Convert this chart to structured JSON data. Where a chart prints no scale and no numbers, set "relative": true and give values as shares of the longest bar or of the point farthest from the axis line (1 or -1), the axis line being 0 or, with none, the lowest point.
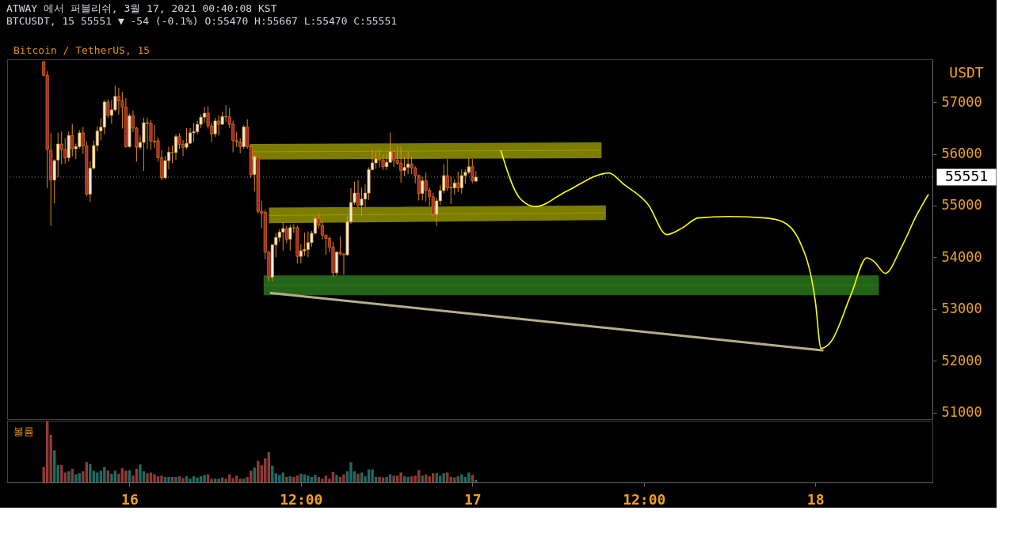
{
  "chart_data": [
    {
      "type": "candlestick",
      "title": "ATWAY 에서 퍼블리쉬, 3월 17, 2021 00:40:08 KST",
      "subtitle": "BTCUSDT, 15 55551 ▼ -54 (-0.1%) O:55470 H:55667 L:55470 C:55551",
      "ylabel": "USDT",
      "legend": "top left",
      "tick_labels": "y",
      "xlim": [
        "2021-03-15T15:43",
        "2021-03-18T07:55"
      ],
      "ylim": [
        50870,
        57829
      ],
      "yticks": [
        51000,
        52000,
        53000,
        54000,
        55000,
        56000,
        57000
      ],
      "ref_lines": [
        {
          "axis": "y",
          "value": 55551,
          "label": "55551",
          "color": "#ffffff",
          "line_style": "dotted"
        }
      ],
      "series": [
        {
          "type": "candlestick",
          "name": "Bitcoin / TetherUS, 15",
          "color": "#e08e0b",
          "x": [
            "2021-03-15T18:00",
            "2021-03-15T18:15",
            "2021-03-15T18:30",
            "2021-03-15T18:45",
            "2021-03-15T19:00",
            "2021-03-15T19:15",
            "2021-03-15T19:30",
            "2021-03-15T19:45",
            "2021-03-15T20:00",
            "2021-03-15T20:15",
            "2021-03-15T20:30",
            "2021-03-15T20:45",
            "2021-03-15T21:00",
            "2021-03-15T21:15",
            "2021-03-15T21:30",
            "2021-03-15T21:45",
            "2021-03-15T22:00",
            "2021-03-15T22:15",
            "2021-03-15T22:30",
            "2021-03-15T22:45",
            "2021-03-15T23:00",
            "2021-03-15T23:15",
            "2021-03-15T23:30",
            "2021-03-15T23:45",
            "2021-03-16T00:00",
            "2021-03-16T00:15",
            "2021-03-16T00:30",
            "2021-03-16T00:45",
            "2021-03-16T01:00",
            "2021-03-16T01:15",
            "2021-03-16T01:30",
            "2021-03-16T01:45",
            "2021-03-16T02:00",
            "2021-03-16T02:15",
            "2021-03-16T02:30",
            "2021-03-16T02:45",
            "2021-03-16T03:00",
            "2021-03-16T03:15",
            "2021-03-16T03:30",
            "2021-03-16T03:45",
            "2021-03-16T04:00",
            "2021-03-16T04:15",
            "2021-03-16T04:30",
            "2021-03-16T04:45",
            "2021-03-16T05:00",
            "2021-03-16T05:15",
            "2021-03-16T05:30",
            "2021-03-16T05:45",
            "2021-03-16T06:00",
            "2021-03-16T06:15",
            "2021-03-16T06:30",
            "2021-03-16T06:45",
            "2021-03-16T07:00",
            "2021-03-16T07:15",
            "2021-03-16T07:30",
            "2021-03-16T07:45",
            "2021-03-16T08:00",
            "2021-03-16T08:15",
            "2021-03-16T08:30",
            "2021-03-16T08:45",
            "2021-03-16T09:00",
            "2021-03-16T09:15",
            "2021-03-16T09:30",
            "2021-03-16T09:45",
            "2021-03-16T10:00",
            "2021-03-16T10:15",
            "2021-03-16T10:30",
            "2021-03-16T10:45",
            "2021-03-16T11:00",
            "2021-03-16T11:15",
            "2021-03-16T11:30",
            "2021-03-16T11:45",
            "2021-03-16T12:00",
            "2021-03-16T12:15",
            "2021-03-16T12:30",
            "2021-03-16T12:45",
            "2021-03-16T13:00",
            "2021-03-16T13:15",
            "2021-03-16T13:30",
            "2021-03-16T13:45",
            "2021-03-16T14:00",
            "2021-03-16T14:15",
            "2021-03-16T14:30",
            "2021-03-16T14:45",
            "2021-03-16T15:00",
            "2021-03-16T15:15",
            "2021-03-16T15:30",
            "2021-03-16T15:45",
            "2021-03-16T16:00",
            "2021-03-16T16:15",
            "2021-03-16T16:30",
            "2021-03-16T16:45",
            "2021-03-16T17:00",
            "2021-03-16T17:15",
            "2021-03-16T17:30",
            "2021-03-16T17:45",
            "2021-03-16T18:00",
            "2021-03-16T18:15",
            "2021-03-16T18:30",
            "2021-03-16T18:45",
            "2021-03-16T19:00",
            "2021-03-16T19:15",
            "2021-03-16T19:30",
            "2021-03-16T19:45",
            "2021-03-16T20:00",
            "2021-03-16T20:15",
            "2021-03-16T20:30",
            "2021-03-16T20:45",
            "2021-03-16T21:00",
            "2021-03-16T21:15",
            "2021-03-16T21:30",
            "2021-03-16T21:45",
            "2021-03-16T22:00",
            "2021-03-16T22:15",
            "2021-03-16T22:30",
            "2021-03-16T22:45",
            "2021-03-16T23:00",
            "2021-03-16T23:15",
            "2021-03-16T23:30",
            "2021-03-16T23:45",
            "2021-03-17T00:00",
            "2021-03-17T00:15"
          ],
          "colors": [
            "#b3242b",
            "#b3242b",
            "#b3242b",
            "#efeadc",
            "#efeadc",
            "#b3242b",
            "#b3242b",
            "#efeadc",
            "#b3242b",
            "#efeadc",
            "#efeadc",
            "#b3242b",
            "#b3242b",
            "#efeadc",
            "#efeadc",
            "#efeadc",
            "#efeadc",
            "#efeadc",
            "#b3242b",
            "#efeadc",
            "#efeadc",
            "#b3242b",
            "#b3242b",
            "#b3242b",
            "#efeadc",
            "#b3242b",
            "#b3242b",
            "#efeadc",
            "#efeadc",
            "#b3242b",
            "#b3242b",
            "#b3242b",
            "#b3242b",
            "#b3242b",
            "#efeadc",
            "#efeadc",
            "#b3242b",
            "#efeadc",
            "#b3242b",
            "#b3242b",
            "#efeadc",
            "#efeadc",
            "#efeadc",
            "#efeadc",
            "#efeadc",
            "#efeadc",
            "#b3242b",
            "#b3242b",
            "#efeadc",
            "#b3242b",
            "#efeadc",
            "#b3242b",
            "#b3242b",
            "#b3242b",
            "#b3242b",
            "#b3242b",
            "#efeadc",
            "#b3242b",
            "#b3242b",
            "#efeadc",
            "#b3242b",
            "#b3242b",
            "#b3242b",
            "#b3242b",
            "#efeadc",
            "#efeadc",
            "#efeadc",
            "#efeadc",
            "#b3242b",
            "#efeadc",
            "#b3242b",
            "#b3242b",
            "#efeadc",
            "#efeadc",
            "#efeadc",
            "#efeadc",
            "#efeadc",
            "#b3242b",
            "#b3242b",
            "#b3242b",
            "#b3242b",
            "#b3242b",
            "#efeadc",
            "#b3242b",
            "#b3242b",
            "#efeadc",
            "#efeadc",
            "#efeadc",
            "#b3242b",
            "#efeadc",
            "#efeadc",
            "#efeadc",
            "#efeadc",
            "#efeadc",
            "#b3242b",
            "#b3242b",
            "#efeadc",
            "#efeadc",
            "#b3242b",
            "#b3242b",
            "#b3242b",
            "#efeadc",
            "#efeadc",
            "#b3242b",
            "#b3242b",
            "#b3242b",
            "#efeadc",
            "#b3242b",
            "#b3242b",
            "#b3242b",
            "#efeadc",
            "#efeadc",
            "#efeadc",
            "#b3242b",
            "#b3242b",
            "#efeadc",
            "#b3242b",
            "#efeadc",
            "#efeadc",
            "#efeadc",
            "#b3242b",
            "#efeadc"
          ],
          "ohlc": [
            [
              57780,
              57800,
              57500,
              57520
            ],
            [
              57520,
              57600,
              55342,
              56084
            ],
            [
              56076,
              56400,
              54608,
              55493
            ],
            [
              55493,
              55900,
              55040,
              55869
            ],
            [
              55881,
              56410,
              55550,
              56192
            ],
            [
              56192,
              56430,
              55800,
              56084
            ],
            [
              56084,
              56300,
              55810,
              55925
            ],
            [
              55925,
              56430,
              55850,
              56356
            ],
            [
              56356,
              56580,
              55950,
              56097
            ],
            [
              56097,
              56200,
              55900,
              56140
            ],
            [
              56140,
              56460,
              56100,
              56408
            ],
            [
              56408,
              56520,
              56000,
              56153
            ],
            [
              56153,
              56240,
              55190,
              55221
            ],
            [
              55221,
              55860,
              55070,
              55722
            ],
            [
              55722,
              56260,
              55700,
              56162
            ],
            [
              56162,
              56530,
              56050,
              56443
            ],
            [
              56443,
              56690,
              56260,
              56516
            ],
            [
              56516,
              57040,
              56380,
              57004
            ],
            [
              57004,
              57060,
              56700,
              56745
            ],
            [
              56745,
              57040,
              56580,
              56853
            ],
            [
              56853,
              57320,
              56820,
              57112
            ],
            [
              57112,
              57280,
              56760,
              57025
            ],
            [
              57025,
              57200,
              56490,
              56905
            ],
            [
              56905,
              57080,
              56120,
              56140
            ],
            [
              56140,
              56780,
              56120,
              56736
            ],
            [
              56736,
              56840,
              56420,
              56499
            ],
            [
              56499,
              56520,
              55850,
              56128
            ],
            [
              56128,
              56360,
              56080,
              56222
            ],
            [
              56222,
              56700,
              55670,
              56603
            ],
            [
              56603,
              56700,
              56100,
              56585
            ],
            [
              56590,
              56650,
              56080,
              56248
            ],
            [
              56248,
              56560,
              56120,
              56230
            ],
            [
              56257,
              56320,
              55850,
              55925
            ],
            [
              55925,
              56070,
              55490,
              55536
            ],
            [
              55536,
              55960,
              55520,
              55869
            ],
            [
              55869,
              56140,
              55700,
              56033
            ],
            [
              56033,
              56160,
              55820,
              56025
            ],
            [
              56025,
              56380,
              55880,
              56335
            ],
            [
              56335,
              56400,
              56100,
              56184
            ],
            [
              56184,
              56270,
              55960,
              56128
            ],
            [
              56128,
              56500,
              56090,
              56205
            ],
            [
              56205,
              56500,
              56190,
              56408
            ],
            [
              56408,
              56600,
              56220,
              56430
            ],
            [
              56430,
              56640,
              56380,
              56572
            ],
            [
              56572,
              56760,
              56500,
              56710
            ],
            [
              56710,
              56910,
              56600,
              56788
            ],
            [
              56788,
              56920,
              56490,
              56542
            ],
            [
              56542,
              56600,
              56230,
              56386
            ],
            [
              56386,
              56700,
              56330,
              56637
            ],
            [
              56637,
              56750,
              56350,
              56572
            ],
            [
              56572,
              56820,
              56560,
              56723
            ],
            [
              56723,
              56940,
              56620,
              56715
            ],
            [
              56715,
              56890,
              56500,
              56572
            ],
            [
              56572,
              56640,
              56030,
              56257
            ],
            [
              56257,
              56430,
              56130,
              56227
            ],
            [
              56227,
              56300,
              56010,
              56140
            ],
            [
              56140,
              56560,
              56100,
              56520
            ],
            [
              56520,
              56670,
              56100,
              56140
            ],
            [
              56140,
              56160,
              55540,
              55601
            ],
            [
              55601,
              55980,
              55270,
              55946
            ],
            [
              55946,
              55970,
              54850,
              54889
            ],
            [
              54889,
              55090,
              54560,
              54850
            ],
            [
              54870,
              54920,
              53960,
              54099
            ],
            [
              54099,
              54130,
              53530,
              53615
            ],
            [
              53615,
              54250,
              53530,
              54241
            ],
            [
              54241,
              54470,
              54000,
              54384
            ],
            [
              54384,
              54540,
              54300,
              54487
            ],
            [
              54487,
              54680,
              54130,
              54556
            ],
            [
              54556,
              54610,
              54280,
              54350
            ],
            [
              54350,
              54630,
              54130,
              54573
            ],
            [
              54573,
              54640,
              54470,
              54570
            ],
            [
              54573,
              54610,
              53880,
              54017
            ],
            [
              54017,
              54250,
              53880,
              54125
            ],
            [
              54125,
              54480,
              54030,
              54150
            ],
            [
              54150,
              54500,
              54000,
              54284
            ],
            [
              54284,
              54510,
              54200,
              54465
            ],
            [
              54465,
              54790,
              54430,
              54750
            ],
            [
              54750,
              54860,
              54560,
              54617
            ],
            [
              54617,
              54700,
              54340,
              54427
            ],
            [
              54427,
              54440,
              54050,
              54366
            ],
            [
              54366,
              54400,
              54100,
              54198
            ],
            [
              54198,
              54300,
              53620,
              53701
            ],
            [
              53701,
              54120,
              53650,
              54099
            ],
            [
              54099,
              54400,
              54040,
              54065
            ],
            [
              54065,
              54080,
              53660,
              54047
            ],
            [
              54047,
              54800,
              54030,
              54686
            ],
            [
              54686,
              55340,
              54650,
              55061
            ],
            [
              55061,
              55460,
              55020,
              55243
            ],
            [
              55243,
              55490,
              54960,
              55005
            ],
            [
              55005,
              55350,
              54800,
              55126
            ],
            [
              55126,
              55410,
              54970,
              55243
            ],
            [
              55243,
              55740,
              55110,
              55696
            ],
            [
              55696,
              56100,
              55680,
              55826
            ],
            [
              55826,
              56060,
              55710,
              55903
            ],
            [
              55903,
              56100,
              55740,
              55881
            ],
            [
              55881,
              55990,
              55690,
              55752
            ],
            [
              55752,
              55980,
              55690,
              55838
            ],
            [
              55838,
              56410,
              55830,
              56045
            ],
            [
              56045,
              56080,
              55750,
              55873
            ],
            [
              55873,
              56150,
              55790,
              55817
            ],
            [
              55817,
              56150,
              55440,
              55679
            ],
            [
              55679,
              55950,
              55570,
              55739
            ],
            [
              55739,
              56050,
              55610,
              55804
            ],
            [
              55804,
              55960,
              55610,
              55730
            ],
            [
              55730,
              55760,
              55430,
              55580
            ],
            [
              55580,
              55600,
              55100,
              55234
            ],
            [
              55234,
              55560,
              55100,
              55480
            ],
            [
              55480,
              55640,
              55080,
              55299
            ],
            [
              55299,
              55350,
              54990,
              55170
            ],
            [
              55170,
              55250,
              54790,
              54833
            ],
            [
              54833,
              55150,
              54600,
              55092
            ],
            [
              55092,
              55400,
              55010,
              55290
            ],
            [
              55290,
              55800,
              55240,
              55580
            ],
            [
              55580,
              55900,
              55280,
              55342
            ],
            [
              55355,
              55560,
              55030,
              55342
            ],
            [
              55342,
              55500,
              55210,
              55437
            ],
            [
              55437,
              55660,
              55260,
              55342
            ],
            [
              55342,
              55700,
              55230,
              55580
            ],
            [
              55580,
              55700,
              55420,
              55644
            ],
            [
              55644,
              55920,
              55610,
              55752
            ],
            [
              55752,
              55900,
              55430,
              55480
            ],
            [
              55470,
              55667,
              55470,
              55551
            ]
          ]
        },
        {
          "type": "line",
          "color": "#9c9c00",
          "x": [
            "2021-03-16T08:28",
            "2021-03-17T09:00"
          ],
          "values": [
            56040,
            56070
          ],
          "lower": [
            55900,
            55930
          ],
          "upper": [
            56180,
            56210
          ]
        },
        {
          "type": "line",
          "color": "#9c9c00",
          "x": [
            "2021-03-16T09:48",
            "2021-03-17T09:18"
          ],
          "values": [
            54810,
            54860
          ],
          "lower": [
            54670,
            54730
          ],
          "upper": [
            54950,
            54990
          ]
        },
        {
          "type": "line",
          "color": "#2e7d1e",
          "x": [
            "2021-03-16T09:26",
            "2021-03-18T04:24"
          ],
          "values": [
            53460,
            53460
          ],
          "lower": [
            53280,
            53280
          ],
          "upper": [
            53640,
            53640
          ]
        },
        {
          "type": "line",
          "color": "#b5ae8a",
          "x": [
            "2021-03-16T09:54",
            "2021-03-18T00:30"
          ],
          "values": [
            53310,
            52200
          ]
        },
        {
          "type": "line",
          "color": "#ffff00",
          "x": [
            "2021-03-17T02:00",
            "2021-03-17T03:18",
            "2021-03-17T04:24",
            "2021-03-17T06:36",
            "2021-03-17T09:33",
            "2021-03-17T10:36",
            "2021-03-17T12:18",
            "2021-03-17T13:36",
            "2021-03-17T14:42",
            "2021-03-17T15:48",
            "2021-03-17T18:00",
            "2021-03-17T20:30",
            "2021-03-17T21:36",
            "2021-03-17T22:54",
            "2021-03-18T00:00",
            "2021-03-18T00:24",
            "2021-03-18T01:06",
            "2021-03-18T02:30",
            "2021-03-18T03:36",
            "2021-03-18T04:06",
            "2021-03-18T04:54",
            "2021-03-18T06:00",
            "2021-03-18T07:06",
            "2021-03-18T07:54"
          ],
          "values": [
            56060,
            55150,
            54980,
            55280,
            55630,
            55410,
            55020,
            54440,
            54570,
            54760,
            54790,
            54760,
            54700,
            54310,
            53150,
            52240,
            52370,
            53280,
            53990,
            53920,
            53690,
            54180,
            54820,
            55210
          ]
        }
      ]
    },
    {
      "type": "bar",
      "relative": true,
      "tick_labels": "x",
      "legend": "top left",
      "xlim": [
        "2021-03-15T15:43",
        "2021-03-18T07:55"
      ],
      "xticks": [
        {
          "value": "2021-03-16",
          "label": "16"
        },
        {
          "value": "2021-03-16T12:00",
          "label": "12:00"
        },
        {
          "value": "2021-03-17",
          "label": "17"
        },
        {
          "value": "2021-03-17T12:00",
          "label": "12:00"
        },
        {
          "value": "2021-03-18",
          "label": "18"
        }
      ],
      "x": [
        "2021-03-15T18:00",
        "2021-03-15T18:15",
        "2021-03-15T18:30",
        "2021-03-15T18:45",
        "2021-03-15T19:00",
        "2021-03-15T19:15",
        "2021-03-15T19:30",
        "2021-03-15T19:45",
        "2021-03-15T20:00",
        "2021-03-15T20:15",
        "2021-03-15T20:30",
        "2021-03-15T20:45",
        "2021-03-15T21:00",
        "2021-03-15T21:15",
        "2021-03-15T21:30",
        "2021-03-15T21:45",
        "2021-03-15T22:00",
        "2021-03-15T22:15",
        "2021-03-15T22:30",
        "2021-03-15T22:45",
        "2021-03-15T23:00",
        "2021-03-15T23:15",
        "2021-03-15T23:30",
        "2021-03-15T23:45",
        "2021-03-16T00:00",
        "2021-03-16T00:15",
        "2021-03-16T00:30",
        "2021-03-16T00:45",
        "2021-03-16T01:00",
        "2021-03-16T01:15",
        "2021-03-16T01:30",
        "2021-03-16T01:45",
        "2021-03-16T02:00",
        "2021-03-16T02:15",
        "2021-03-16T02:30",
        "2021-03-16T02:45",
        "2021-03-16T03:00",
        "2021-03-16T03:15",
        "2021-03-16T03:30",
        "2021-03-16T03:45",
        "2021-03-16T04:00",
        "2021-03-16T04:15",
        "2021-03-16T04:30",
        "2021-03-16T04:45",
        "2021-03-16T05:00",
        "2021-03-16T05:15",
        "2021-03-16T05:30",
        "2021-03-16T05:45",
        "2021-03-16T06:00",
        "2021-03-16T06:15",
        "2021-03-16T06:30",
        "2021-03-16T06:45",
        "2021-03-16T07:00",
        "2021-03-16T07:15",
        "2021-03-16T07:30",
        "2021-03-16T07:45",
        "2021-03-16T08:00",
        "2021-03-16T08:15",
        "2021-03-16T08:30",
        "2021-03-16T08:45",
        "2021-03-16T09:00",
        "2021-03-16T09:15",
        "2021-03-16T09:30",
        "2021-03-16T09:45",
        "2021-03-16T10:00",
        "2021-03-16T10:15",
        "2021-03-16T10:30",
        "2021-03-16T10:45",
        "2021-03-16T11:00",
        "2021-03-16T11:15",
        "2021-03-16T11:30",
        "2021-03-16T11:45",
        "2021-03-16T12:00",
        "2021-03-16T12:15",
        "2021-03-16T12:30",
        "2021-03-16T12:45",
        "2021-03-16T13:00",
        "2021-03-16T13:15",
        "2021-03-16T13:30",
        "2021-03-16T13:45",
        "2021-03-16T14:00",
        "2021-03-16T14:15",
        "2021-03-16T14:30",
        "2021-03-16T14:45",
        "2021-03-16T15:00",
        "2021-03-16T15:15",
        "2021-03-16T15:30",
        "2021-03-16T15:45",
        "2021-03-16T16:00",
        "2021-03-16T16:15",
        "2021-03-16T16:30",
        "2021-03-16T16:45",
        "2021-03-16T17:00",
        "2021-03-16T17:15",
        "2021-03-16T17:30",
        "2021-03-16T17:45",
        "2021-03-16T18:00",
        "2021-03-16T18:15",
        "2021-03-16T18:30",
        "2021-03-16T18:45",
        "2021-03-16T19:00",
        "2021-03-16T19:15",
        "2021-03-16T19:30",
        "2021-03-16T19:45",
        "2021-03-16T20:00",
        "2021-03-16T20:15",
        "2021-03-16T20:30",
        "2021-03-16T20:45",
        "2021-03-16T21:00",
        "2021-03-16T21:15",
        "2021-03-16T21:30",
        "2021-03-16T21:45",
        "2021-03-16T22:00",
        "2021-03-16T22:15",
        "2021-03-16T22:30",
        "2021-03-16T22:45",
        "2021-03-16T23:00",
        "2021-03-16T23:15",
        "2021-03-16T23:30",
        "2021-03-16T23:45",
        "2021-03-17T00:00",
        "2021-03-17T00:15"
      ],
      "series": [
        {
          "name": "볼륨",
          "colors": [
            "#8f3a34",
            "#8f3a34",
            "#8f3a34",
            "#1f6b63",
            "#1f6b63",
            "#8f3a34",
            "#8f3a34",
            "#1f6b63",
            "#8f3a34",
            "#1f6b63",
            "#1f6b63",
            "#8f3a34",
            "#8f3a34",
            "#1f6b63",
            "#1f6b63",
            "#1f6b63",
            "#1f6b63",
            "#1f6b63",
            "#8f3a34",
            "#1f6b63",
            "#1f6b63",
            "#8f3a34",
            "#8f3a34",
            "#8f3a34",
            "#1f6b63",
            "#8f3a34",
            "#8f3a34",
            "#1f6b63",
            "#1f6b63",
            "#8f3a34",
            "#8f3a34",
            "#8f3a34",
            "#8f3a34",
            "#8f3a34",
            "#1f6b63",
            "#1f6b63",
            "#8f3a34",
            "#1f6b63",
            "#8f3a34",
            "#8f3a34",
            "#1f6b63",
            "#1f6b63",
            "#1f6b63",
            "#1f6b63",
            "#1f6b63",
            "#1f6b63",
            "#8f3a34",
            "#8f3a34",
            "#1f6b63",
            "#8f3a34",
            "#1f6b63",
            "#8f3a34",
            "#8f3a34",
            "#8f3a34",
            "#8f3a34",
            "#8f3a34",
            "#1f6b63",
            "#8f3a34",
            "#8f3a34",
            "#1f6b63",
            "#8f3a34",
            "#8f3a34",
            "#8f3a34",
            "#8f3a34",
            "#1f6b63",
            "#1f6b63",
            "#1f6b63",
            "#1f6b63",
            "#8f3a34",
            "#1f6b63",
            "#8f3a34",
            "#8f3a34",
            "#1f6b63",
            "#1f6b63",
            "#1f6b63",
            "#1f6b63",
            "#1f6b63",
            "#8f3a34",
            "#8f3a34",
            "#8f3a34",
            "#8f3a34",
            "#8f3a34",
            "#1f6b63",
            "#8f3a34",
            "#8f3a34",
            "#1f6b63",
            "#1f6b63",
            "#1f6b63",
            "#8f3a34",
            "#1f6b63",
            "#1f6b63",
            "#1f6b63",
            "#1f6b63",
            "#1f6b63",
            "#8f3a34",
            "#8f3a34",
            "#1f6b63",
            "#1f6b63",
            "#8f3a34",
            "#8f3a34",
            "#8f3a34",
            "#1f6b63",
            "#1f6b63",
            "#8f3a34",
            "#8f3a34",
            "#8f3a34",
            "#1f6b63",
            "#8f3a34",
            "#8f3a34",
            "#8f3a34",
            "#1f6b63",
            "#1f6b63",
            "#1f6b63",
            "#8f3a34",
            "#8f3a34",
            "#1f6b63",
            "#8f3a34",
            "#1f6b63",
            "#1f6b63",
            "#1f6b63",
            "#8f3a34",
            "#1f6b63"
          ],
          "values": [
            0.25,
            1,
            0.77,
            0.52,
            0.28,
            0.28,
            0.16,
            0.18,
            0.22,
            0.13,
            0.15,
            0.18,
            0.33,
            0.3,
            0.19,
            0.16,
            0.19,
            0.25,
            0.19,
            0.14,
            0.19,
            0.14,
            0.23,
            0.19,
            0.2,
            0.11,
            0.22,
            0.29,
            0.18,
            0.15,
            0.16,
            0.13,
            0.1,
            0.11,
            0.09,
            0.09,
            0.09,
            0.09,
            0.1,
            0.07,
            0.1,
            0.06,
            0.1,
            0.08,
            0.1,
            0.12,
            0.13,
            0.06,
            0.06,
            0.06,
            0.08,
            0.06,
            0.13,
            0.07,
            0.11,
            0.06,
            0.06,
            0.09,
            0.19,
            0.24,
            0.35,
            0.28,
            0.39,
            0.49,
            0.27,
            0.15,
            0.12,
            0.16,
            0.09,
            0.1,
            0.09,
            0.11,
            0.14,
            0.13,
            0.11,
            0.09,
            0.12,
            0.09,
            0.06,
            0.11,
            0.06,
            0.17,
            0.12,
            0.09,
            0.13,
            0.18,
            0.33,
            0.18,
            0.14,
            0.16,
            0.1,
            0.21,
            0.21,
            0.09,
            0.09,
            0.08,
            0.09,
            0.13,
            0.11,
            0.11,
            0.16,
            0.1,
            0.09,
            0.1,
            0.11,
            0.2,
            0.11,
            0.13,
            0.1,
            0.15,
            0.15,
            0.11,
            0.15,
            0.16,
            0.09,
            0.08,
            0.1,
            0.13,
            0.09,
            0.16,
            0.12,
            0.04
          ]
        }
      ]
    }
  ]
}
